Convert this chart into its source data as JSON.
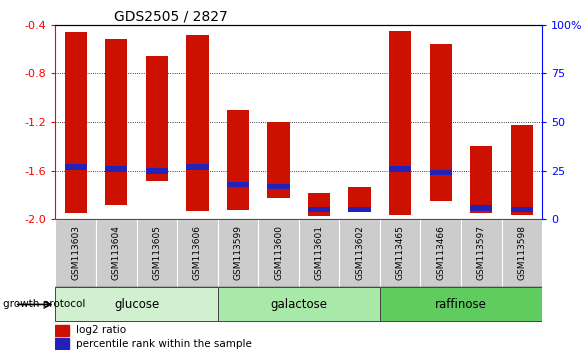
{
  "title": "GDS2505 / 2827",
  "samples": [
    "GSM113603",
    "GSM113604",
    "GSM113605",
    "GSM113606",
    "GSM113599",
    "GSM113600",
    "GSM113601",
    "GSM113602",
    "GSM113465",
    "GSM113466",
    "GSM113597",
    "GSM113598"
  ],
  "log2_ratio": [
    -1.95,
    -1.88,
    -1.68,
    -1.93,
    -1.92,
    -1.82,
    -1.97,
    -1.92,
    -1.96,
    -1.85,
    -1.95,
    -1.96
  ],
  "log2_top": [
    -0.46,
    -0.52,
    -0.66,
    -0.48,
    -1.1,
    -1.2,
    -1.78,
    -1.73,
    -0.45,
    -0.56,
    -1.4,
    -1.22
  ],
  "percentile_rank": [
    27,
    26,
    25,
    27,
    18,
    17,
    5,
    5,
    26,
    24,
    6,
    5
  ],
  "groups": [
    {
      "label": "glucose",
      "count": 4
    },
    {
      "label": "galactose",
      "count": 4
    },
    {
      "label": "raffinose",
      "count": 4
    }
  ],
  "group_colors": [
    "#d0f0d0",
    "#a8e8a8",
    "#60cc60"
  ],
  "ylim_left": [
    -2.0,
    -0.4
  ],
  "ylim_right": [
    0,
    100
  ],
  "left_ticks": [
    -2.0,
    -1.6,
    -1.2,
    -0.8,
    -0.4
  ],
  "right_ticks": [
    0,
    25,
    50,
    75,
    100
  ],
  "right_tick_labels": [
    "0",
    "25",
    "50",
    "75",
    "100%"
  ],
  "bar_color": "#cc1100",
  "blue_color": "#2222bb",
  "growth_protocol_label": "growth protocol",
  "legend_log2": "log2 ratio",
  "legend_pct": "percentile rank within the sample",
  "sample_bg_color": "#cccccc"
}
